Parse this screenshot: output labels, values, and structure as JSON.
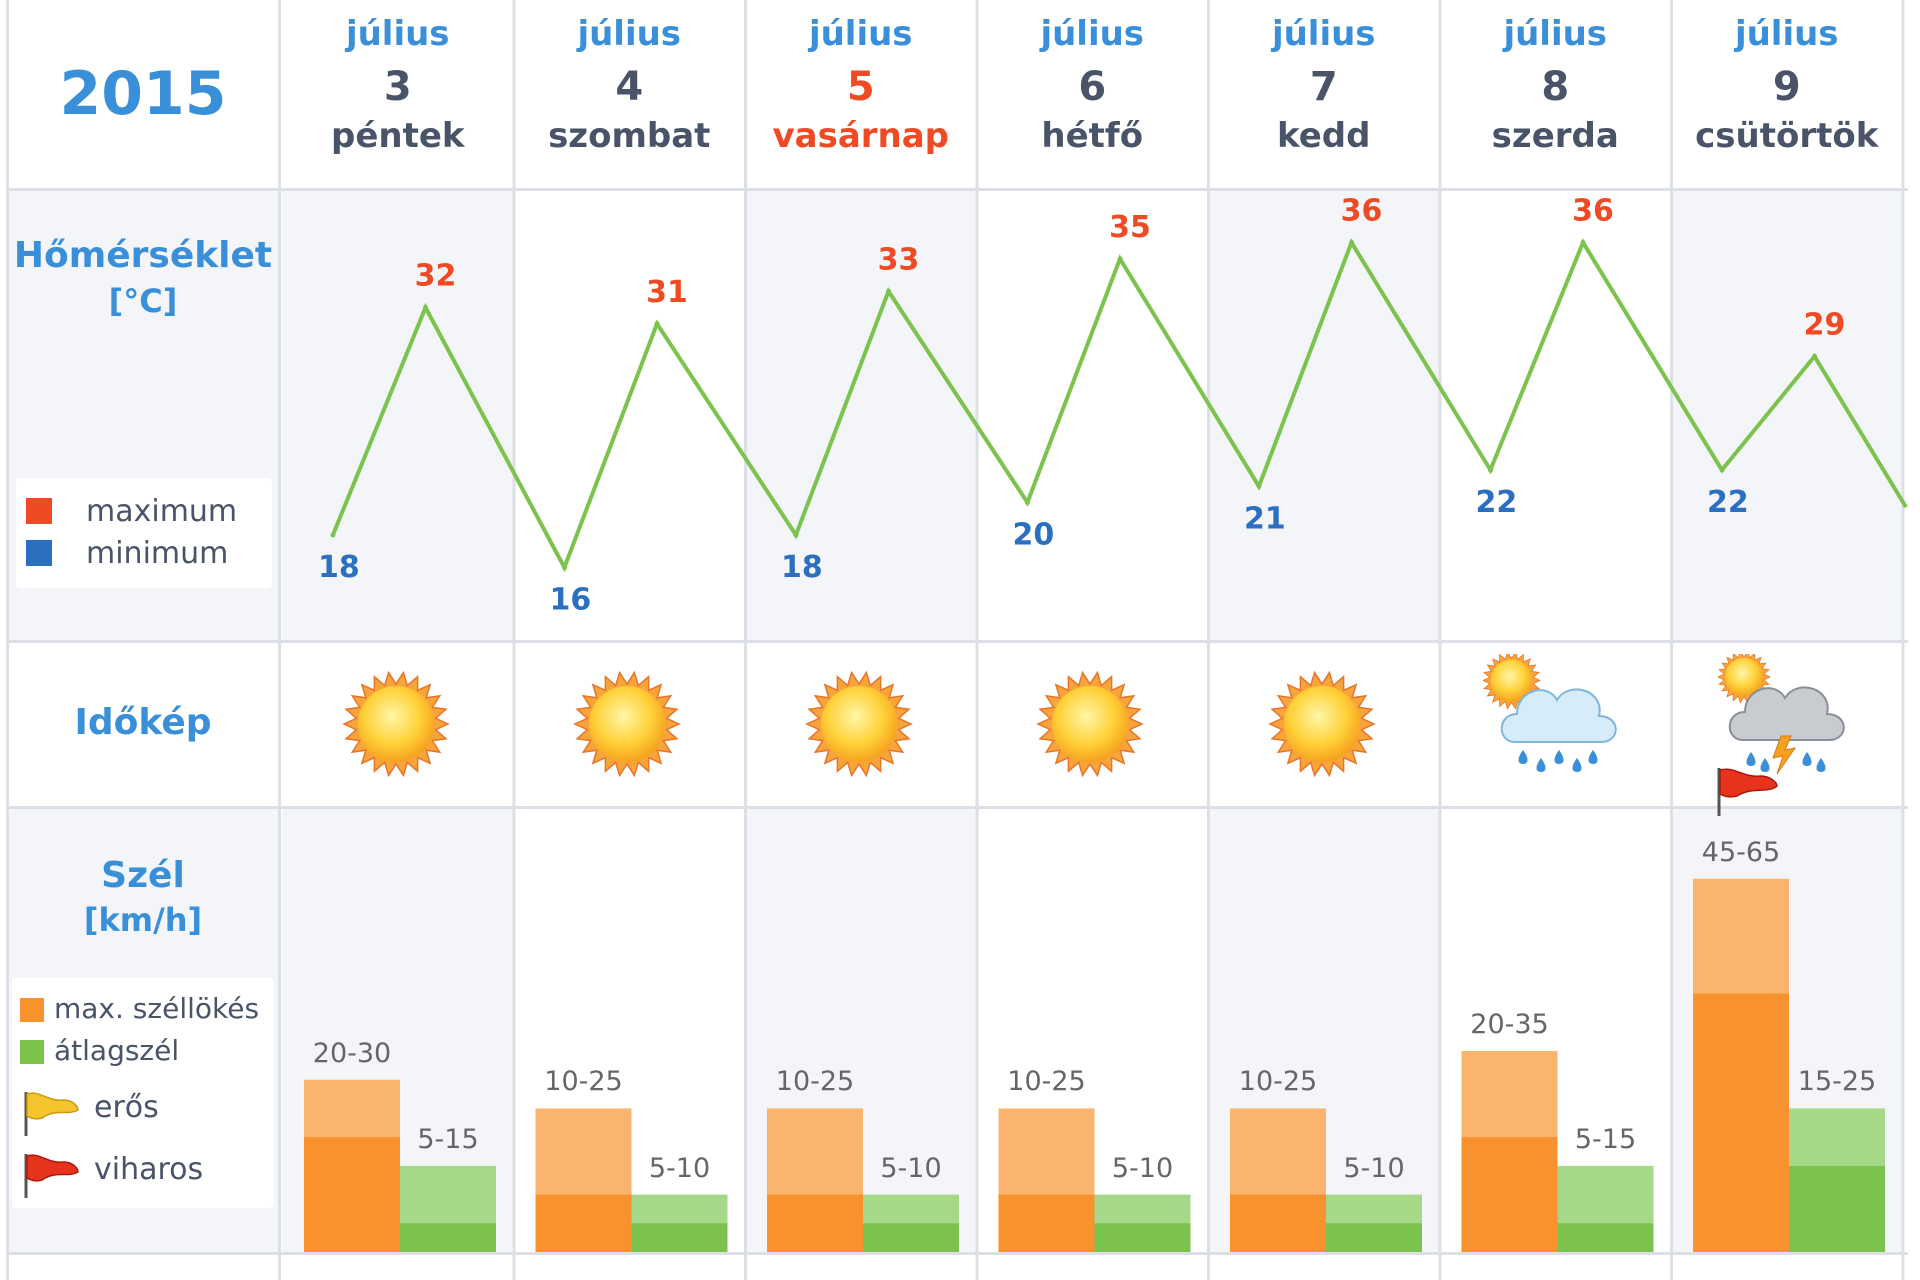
{
  "header": {
    "year": "2015"
  },
  "days": [
    {
      "month": "július",
      "day": "3",
      "weekday": "péntek",
      "sunday": false,
      "weather": "sun-icon"
    },
    {
      "month": "július",
      "day": "4",
      "weekday": "szombat",
      "sunday": false,
      "weather": "sun-icon"
    },
    {
      "month": "július",
      "day": "5",
      "weekday": "vasárnap",
      "sunday": true,
      "weather": "sun-icon"
    },
    {
      "month": "július",
      "day": "6",
      "weekday": "hétfő",
      "sunday": false,
      "weather": "sun-icon"
    },
    {
      "month": "július",
      "day": "7",
      "weekday": "kedd",
      "sunday": false,
      "weather": "sun-icon"
    },
    {
      "month": "július",
      "day": "8",
      "weekday": "szerda",
      "sunday": false,
      "weather": "rain-cloud-sun-icon"
    },
    {
      "month": "július",
      "day": "9",
      "weekday": "csütörtök",
      "sunday": false,
      "weather": "thunderstorm-cloud-icon"
    }
  ],
  "rows": {
    "temperature": {
      "label": "Hőmérséklet",
      "unit": "[°C]"
    },
    "weather": {
      "label": "Időkép"
    },
    "wind": {
      "label": "Szél",
      "unit": "[km/h]"
    }
  },
  "legends": {
    "temperature": {
      "max_label": "maximum",
      "min_label": "minimum",
      "max_color": "#f04a24",
      "min_color": "#2a6fc0"
    },
    "wind": {
      "gust_label": "max. széllökés",
      "avg_label": "átlagszél",
      "strong_label": "erős",
      "storm_label": "viharos",
      "gust_color": "#f7922e",
      "avg_color": "#7cc34d"
    }
  },
  "colors": {
    "accent": "#3a8fd9",
    "line": "#7cc34d",
    "max_text": "#f04a24",
    "min_text": "#2a6fc0",
    "sunday": "#f04a24"
  },
  "chart_data": [
    {
      "type": "line",
      "title": "Hőmérséklet",
      "ylabel": "[°C]",
      "categories": [
        "július 3",
        "július 4",
        "július 5",
        "július 6",
        "július 7",
        "július 8",
        "július 9"
      ],
      "series": [
        {
          "name": "maximum",
          "values": [
            32,
            31,
            33,
            35,
            36,
            36,
            29
          ]
        },
        {
          "name": "minimum",
          "values": [
            18,
            16,
            18,
            20,
            21,
            22,
            22
          ]
        }
      ],
      "ylim": [
        14,
        38
      ]
    },
    {
      "type": "bar",
      "title": "Szél",
      "ylabel": "[km/h]",
      "categories": [
        "július 3",
        "július 4",
        "július 5",
        "július 6",
        "július 7",
        "július 8",
        "július 9"
      ],
      "series": [
        {
          "name": "max. széllökés",
          "low": [
            20,
            10,
            10,
            10,
            10,
            20,
            45
          ],
          "high": [
            30,
            25,
            25,
            25,
            25,
            35,
            65
          ],
          "labels": [
            "20-30",
            "10-25",
            "10-25",
            "10-25",
            "10-25",
            "20-35",
            "45-65"
          ]
        },
        {
          "name": "átlagszél",
          "low": [
            5,
            5,
            5,
            5,
            5,
            5,
            15
          ],
          "high": [
            15,
            10,
            10,
            10,
            10,
            15,
            25
          ],
          "labels": [
            "5-15",
            "5-10",
            "5-10",
            "5-10",
            "5-10",
            "5-15",
            "15-25"
          ]
        }
      ],
      "flags": [
        null,
        null,
        null,
        null,
        null,
        null,
        "viharos"
      ],
      "ylim": [
        0,
        70
      ]
    }
  ]
}
